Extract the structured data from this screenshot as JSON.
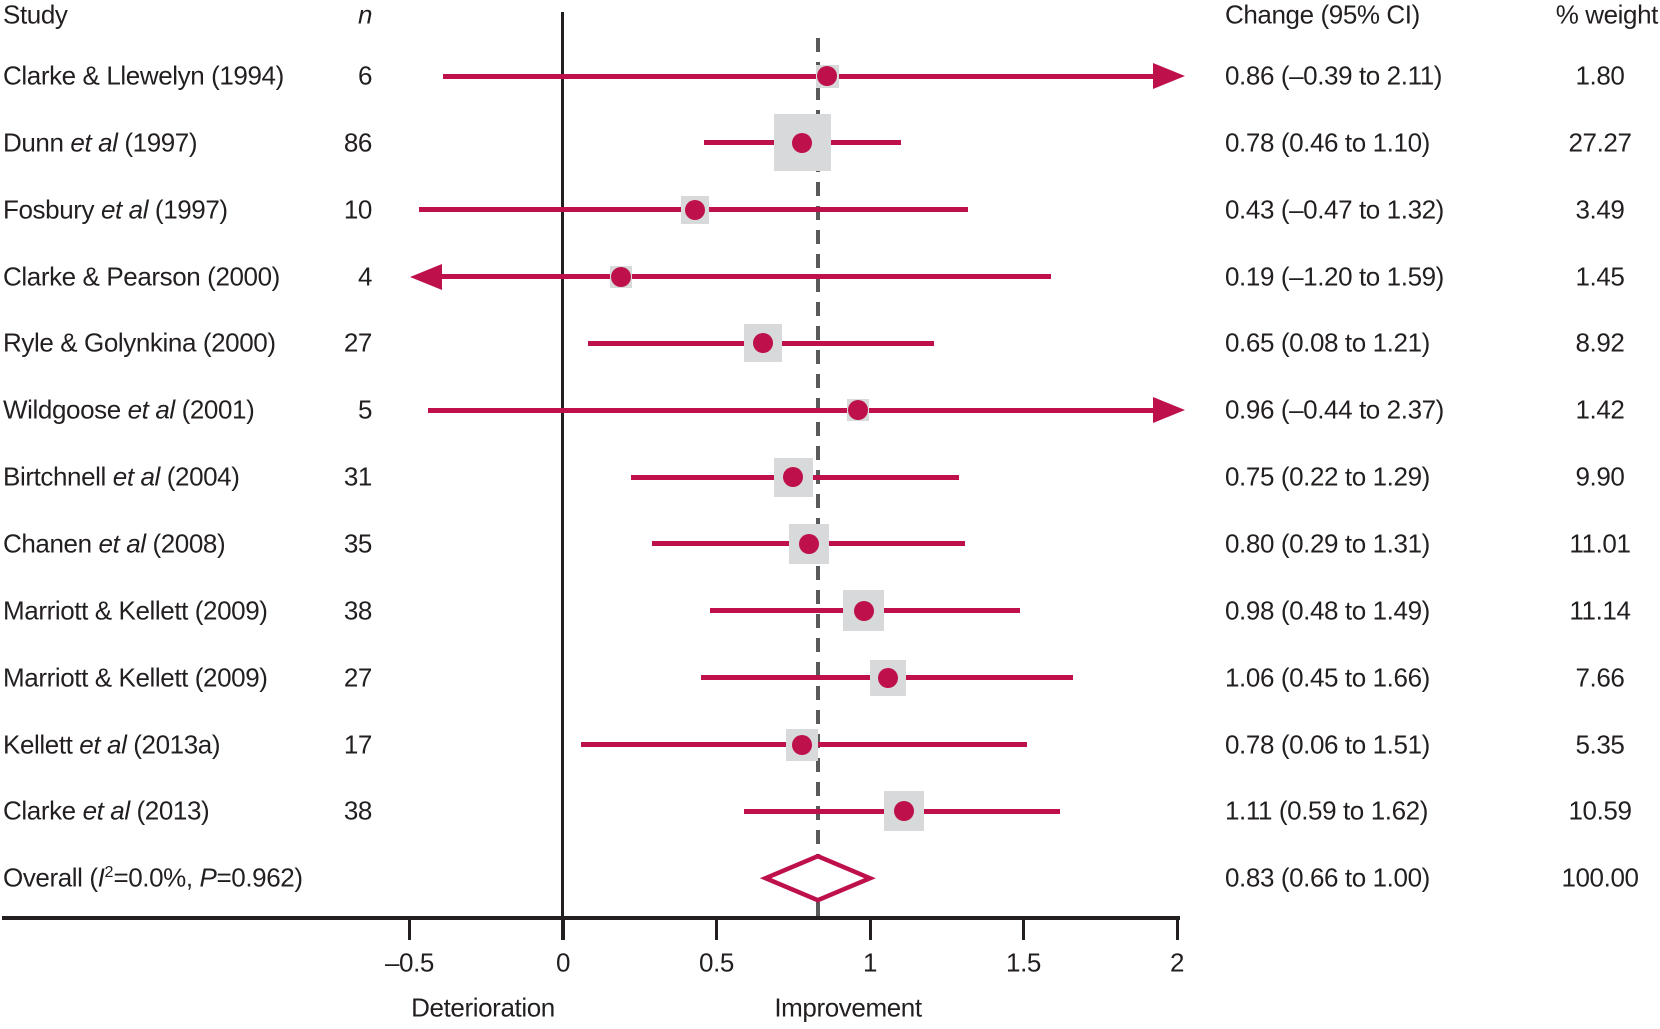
{
  "header": {
    "study": "Study",
    "n": "n",
    "change": "Change (95% CI)",
    "weight": "% weight"
  },
  "colors": {
    "accent_red": "#be104a",
    "square_grey": "#d8d9da",
    "dash_grey": "#58595b",
    "text_black": "#231f20"
  },
  "chart_data": {
    "type": "forest",
    "title": "",
    "xlim": [
      -0.5,
      2
    ],
    "x_tick_values": [
      -0.5,
      0,
      0.5,
      1,
      1.5,
      2
    ],
    "x_tick_labels": [
      "–0.5",
      "0",
      "0.5",
      "1",
      "1.5",
      "2"
    ],
    "axis_captions": {
      "left": "Deterioration",
      "right": "Improvement"
    },
    "reference_line_value": 0,
    "overall_dashed_line_value": 0.83,
    "studies": [
      {
        "label_pre": "Clarke & Llewelyn (1994)",
        "label_it": "",
        "label_post": "",
        "n": "6",
        "est": 0.86,
        "lo": -0.39,
        "hi": 2.11,
        "ci_text": "0.86 (–0.39 to 2.11)",
        "weight": 1.8,
        "weight_text": "1.80"
      },
      {
        "label_pre": "Dunn ",
        "label_it": "et al",
        "label_post": " (1997)",
        "n": "86",
        "est": 0.78,
        "lo": 0.46,
        "hi": 1.1,
        "ci_text": "0.78 (0.46 to 1.10)",
        "weight": 27.27,
        "weight_text": "27.27"
      },
      {
        "label_pre": "Fosbury ",
        "label_it": "et al",
        "label_post": " (1997)",
        "n": "10",
        "est": 0.43,
        "lo": -0.47,
        "hi": 1.32,
        "ci_text": "0.43 (–0.47 to 1.32)",
        "weight": 3.49,
        "weight_text": "3.49"
      },
      {
        "label_pre": "Clarke & Pearson (2000)",
        "label_it": "",
        "label_post": "",
        "n": "4",
        "est": 0.19,
        "lo": -1.2,
        "hi": 1.59,
        "ci_text": "0.19 (–1.20 to 1.59)",
        "weight": 1.45,
        "weight_text": "1.45"
      },
      {
        "label_pre": "Ryle & Golynkina (2000)",
        "label_it": "",
        "label_post": "",
        "n": "27",
        "est": 0.65,
        "lo": 0.08,
        "hi": 1.21,
        "ci_text": "0.65 (0.08 to 1.21)",
        "weight": 8.92,
        "weight_text": "8.92"
      },
      {
        "label_pre": "Wildgoose ",
        "label_it": "et al",
        "label_post": " (2001)",
        "n": "5",
        "est": 0.96,
        "lo": -0.44,
        "hi": 2.37,
        "ci_text": "0.96 (–0.44 to 2.37)",
        "weight": 1.42,
        "weight_text": "1.42"
      },
      {
        "label_pre": "Birtchnell ",
        "label_it": "et al",
        "label_post": " (2004)",
        "n": "31",
        "est": 0.75,
        "lo": 0.22,
        "hi": 1.29,
        "ci_text": "0.75 (0.22 to 1.29)",
        "weight": 9.9,
        "weight_text": "9.90"
      },
      {
        "label_pre": "Chanen ",
        "label_it": "et al",
        "label_post": " (2008)",
        "n": "35",
        "est": 0.8,
        "lo": 0.29,
        "hi": 1.31,
        "ci_text": "0.80 (0.29 to 1.31)",
        "weight": 11.01,
        "weight_text": "11.01"
      },
      {
        "label_pre": "Marriott & Kellett (2009)",
        "label_it": "",
        "label_post": "",
        "n": "38",
        "est": 0.98,
        "lo": 0.48,
        "hi": 1.49,
        "ci_text": "0.98 (0.48 to 1.49)",
        "weight": 11.14,
        "weight_text": "11.14"
      },
      {
        "label_pre": "Marriott & Kellett (2009)",
        "label_it": "",
        "label_post": "",
        "n": "27",
        "est": 1.06,
        "lo": 0.45,
        "hi": 1.66,
        "ci_text": "1.06 (0.45 to 1.66)",
        "weight": 7.66,
        "weight_text": "7.66"
      },
      {
        "label_pre": "Kellett ",
        "label_it": "et al",
        "label_post": " (2013a)",
        "n": "17",
        "est": 0.78,
        "lo": 0.06,
        "hi": 1.51,
        "ci_text": "0.78 (0.06 to 1.51)",
        "weight": 5.35,
        "weight_text": "5.35"
      },
      {
        "label_pre": "Clarke ",
        "label_it": "et al",
        "label_post": " (2013)",
        "n": "38",
        "est": 1.11,
        "lo": 0.59,
        "hi": 1.62,
        "ci_text": "1.11 (0.59 to 1.62)",
        "weight": 10.59,
        "weight_text": "10.59"
      }
    ],
    "overall": {
      "label_pre": "Overall (",
      "label_i": "I",
      "label_sup": "2",
      "label_mid": "=0.0%, ",
      "label_p": "P",
      "label_post": "=0.962)",
      "est": 0.83,
      "lo": 0.66,
      "hi": 1.0,
      "ci_text": "0.83 (0.66 to 1.00)",
      "weight_text": "100.00"
    }
  }
}
